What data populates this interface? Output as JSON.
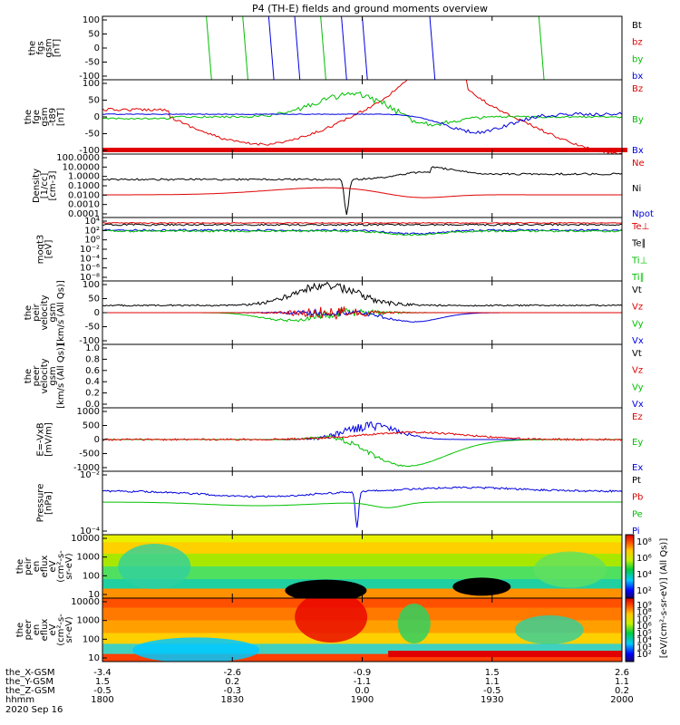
{
  "chart_data": {
    "type": "line",
    "title": "P4 (TH-E) fields and ground moments overview",
    "date_label": "2020 Sep 16",
    "x_ticks": [
      "1800",
      "1830",
      "1900",
      "1930",
      "2000"
    ],
    "footer": {
      "rows": [
        {
          "label": "the_X-GSM",
          "values": [
            "-3.4",
            "-2.6",
            "-0.9",
            "1.5",
            "2.6"
          ]
        },
        {
          "label": "the_Y-GSM",
          "values": [
            "1.5",
            "0.2",
            "-1.1",
            "1.1",
            "1.1"
          ]
        },
        {
          "label": "the_Z-GSM",
          "values": [
            "-0.5",
            "-0.3",
            "0.0",
            "-0.5",
            "0.2"
          ]
        },
        {
          "label": "hhmm",
          "values": [
            "1800",
            "1830",
            "1900",
            "1930",
            "2000"
          ]
        }
      ]
    },
    "panels": [
      {
        "ylabel": [
          "the",
          "fgs",
          "gsm",
          "[nT]"
        ],
        "yticks": [
          "100",
          "50",
          "0",
          "-50",
          "-100"
        ],
        "legend": [
          {
            "name": "Bt",
            "color": "#000000"
          },
          {
            "name": "bz",
            "color": "#e00000"
          },
          {
            "name": "by",
            "color": "#00c000"
          },
          {
            "name": "bx",
            "color": "#0000e0"
          }
        ]
      },
      {
        "ylabel": [
          "the",
          "fge",
          "gsm",
          "-t89",
          "[nT]"
        ],
        "yticks": [
          "100",
          "50",
          "0",
          "-50",
          "-100"
        ],
        "legend": [
          {
            "name": "Bz",
            "color": "#e00000"
          },
          {
            "name": "By",
            "color": "#00c000"
          },
          {
            "name": "Bx",
            "color": "#0000e0"
          }
        ]
      },
      {
        "ylabel": [
          "Density",
          "[1/cc]",
          "[cm-3]"
        ],
        "yticks": [
          "100.0000",
          "10.0000",
          "1.0000",
          "0.1000",
          "0.0100",
          "0.0010",
          "0.0001"
        ],
        "legend": [
          {
            "name": "Ne",
            "color": "#e00000"
          },
          {
            "name": "Ni",
            "color": "#000000"
          },
          {
            "name": "Npot",
            "color": "#0000e0"
          }
        ]
      },
      {
        "ylabel": [
          "moqt3",
          "[eV]"
        ],
        "yticks": [
          "10⁴",
          "10²",
          "10⁰",
          "10⁻²",
          "10⁻⁴",
          "10⁻⁶",
          "10⁻⁸"
        ],
        "legend": [
          {
            "name": "Te⊥",
            "color": "#e00000"
          },
          {
            "name": "Te∥",
            "color": "#000000"
          },
          {
            "name": "Ti⊥",
            "color": "#00c000"
          },
          {
            "name": "Ti∥",
            "color": "#00c000"
          }
        ]
      },
      {
        "ylabel": [
          "the",
          "peir",
          "velocity",
          "gsm",
          "[km/s (All Qs)]"
        ],
        "yticks": [
          "100",
          "50",
          "0",
          "-50",
          "-100"
        ],
        "legend": [
          {
            "name": "Vt",
            "color": "#000000"
          },
          {
            "name": "Vz",
            "color": "#e00000"
          },
          {
            "name": "Vy",
            "color": "#00c000"
          },
          {
            "name": "Vx",
            "color": "#0000e0"
          }
        ]
      },
      {
        "ylabel": [
          "the",
          "peer",
          "velocity",
          "gsm",
          "[km/s (All Qs)]"
        ],
        "yticks": [
          "1.0",
          "0.8",
          "0.6",
          "0.4",
          "0.2",
          "0.0"
        ],
        "legend": [
          {
            "name": "Vt",
            "color": "#000000"
          },
          {
            "name": "Vz",
            "color": "#e00000"
          },
          {
            "name": "Vy",
            "color": "#00c000"
          },
          {
            "name": "Vx",
            "color": "#0000e0"
          }
        ]
      },
      {
        "ylabel": [
          "E=-VxB",
          "[mV/m]"
        ],
        "yticks": [
          "1000",
          "500",
          "0",
          "-500",
          "-1000"
        ],
        "legend": [
          {
            "name": "Ez",
            "color": "#e00000"
          },
          {
            "name": "Ey",
            "color": "#00c000"
          },
          {
            "name": "Ex",
            "color": "#0000e0"
          }
        ]
      },
      {
        "ylabel": [
          "Pressure",
          "[nPa]"
        ],
        "yticks": [
          "10⁻²",
          "10⁻⁴"
        ],
        "legend": [
          {
            "name": "Pt",
            "color": "#000000"
          },
          {
            "name": "Pb",
            "color": "#e00000"
          },
          {
            "name": "Pe",
            "color": "#00c000"
          },
          {
            "name": "Pi",
            "color": "#0000e0"
          }
        ]
      },
      {
        "ylabel": [
          "the",
          "peir",
          "en",
          "eflux",
          "eV",
          "(cm²-s-",
          "sr-eV)"
        ],
        "yticks": [
          "10000",
          "1000",
          "100",
          "10"
        ],
        "colorbar_ticks": [
          "10⁸",
          "10⁶",
          "10⁴",
          "10²"
        ]
      },
      {
        "ylabel": [
          "the",
          "peer",
          "en",
          "eflux",
          "eV",
          "(cm²-s-",
          "sr-eV)"
        ],
        "yticks": [
          "10000",
          "1000",
          "100",
          "10"
        ],
        "colorbar_ticks": [
          "10⁹",
          "10⁸",
          "10⁷",
          "10⁶",
          "10⁵",
          "10⁴",
          "10³",
          "10²"
        ]
      }
    ],
    "colorbar_label": "[eV/(cm²-s-sr-eV)] (All Qs)]"
  },
  "colors": {
    "black": "#000000",
    "red": "#e00000",
    "green": "#00c000",
    "blue": "#0000e0"
  }
}
